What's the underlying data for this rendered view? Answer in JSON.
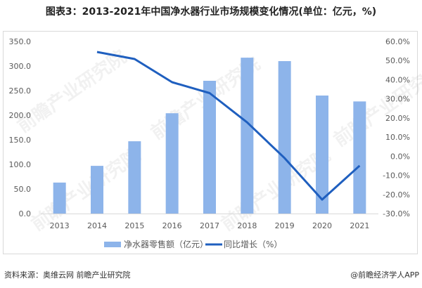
{
  "title": "图表3：2013-2021年中国净水器行业市场规模变化情况(单位：亿元，%)",
  "source": "资料来源：奥维云网 前瞻产业研究院",
  "credit": "@前瞻经济学人APP",
  "watermark": "前瞻产业研究院",
  "colors": {
    "bar": "#8db4ea",
    "line": "#1f5fbf",
    "axis": "#d9d9d9",
    "text": "#595959"
  },
  "chart_data": {
    "type": "bar+line",
    "title": "图表3：2013-2021年中国净水器行业市场规模变化情况(单位：亿元，%)",
    "categories": [
      "2013",
      "2014",
      "2015",
      "2016",
      "2017",
      "2018",
      "2019",
      "2020",
      "2021"
    ],
    "series": [
      {
        "name": "净水器零售额（亿元）",
        "type": "bar",
        "axis": "left",
        "values": [
          63,
          97,
          147,
          204,
          270,
          317,
          310,
          240,
          228
        ]
      },
      {
        "name": "同比增长（%）",
        "type": "line",
        "axis": "right",
        "values": [
          null,
          54.5,
          50.8,
          38.7,
          33.0,
          17.7,
          -1.0,
          -22.7,
          -5.0
        ]
      }
    ],
    "left_axis": {
      "ylim": [
        0,
        350
      ],
      "ticks": [
        "0.0",
        "50.0",
        "100.0",
        "150.0",
        "200.0",
        "250.0",
        "300.0",
        "350.0"
      ]
    },
    "right_axis": {
      "ylim": [
        -30,
        60
      ],
      "ticks": [
        "-30.0%",
        "-20.0%",
        "-10.0%",
        "0.0%",
        "10.0%",
        "20.0%",
        "30.0%",
        "40.0%",
        "50.0%",
        "60.0%"
      ]
    },
    "xlabel": "",
    "ylabel": "",
    "grid": false,
    "legend_position": "bottom"
  },
  "legend": {
    "bar_label": "净水器零售额（亿元）",
    "line_label": "同比增长（%）"
  }
}
